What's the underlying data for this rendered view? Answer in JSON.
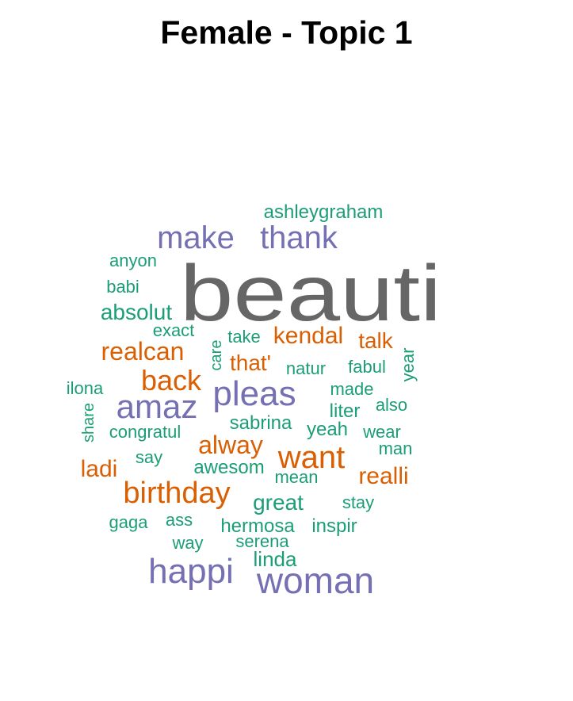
{
  "title": "Female - Topic 1",
  "colors": {
    "gray": "#666666",
    "purple": "#7570b3",
    "orange": "#d95f02",
    "green": "#1b9e77"
  },
  "chart_data": {
    "type": "wordcloud",
    "title": "Female - Topic 1",
    "words": [
      {
        "text": "beauti",
        "size_rank": 1,
        "color_group": "gray"
      },
      {
        "text": "make",
        "size_rank": 2,
        "color_group": "purple"
      },
      {
        "text": "thank",
        "size_rank": 2,
        "color_group": "purple"
      },
      {
        "text": "pleas",
        "size_rank": 2,
        "color_group": "purple"
      },
      {
        "text": "amaz",
        "size_rank": 2,
        "color_group": "purple"
      },
      {
        "text": "happi",
        "size_rank": 2,
        "color_group": "purple"
      },
      {
        "text": "woman",
        "size_rank": 2,
        "color_group": "purple"
      },
      {
        "text": "kendal",
        "size_rank": 3,
        "color_group": "orange"
      },
      {
        "text": "realcan",
        "size_rank": 3,
        "color_group": "orange"
      },
      {
        "text": "back",
        "size_rank": 3,
        "color_group": "orange"
      },
      {
        "text": "want",
        "size_rank": 3,
        "color_group": "orange"
      },
      {
        "text": "birthday",
        "size_rank": 3,
        "color_group": "orange"
      },
      {
        "text": "alway",
        "size_rank": 3,
        "color_group": "orange"
      },
      {
        "text": "realli",
        "size_rank": 3,
        "color_group": "orange"
      },
      {
        "text": "talk",
        "size_rank": 3,
        "color_group": "orange"
      },
      {
        "text": "that'",
        "size_rank": 3,
        "color_group": "orange"
      },
      {
        "text": "ladi",
        "size_rank": 3,
        "color_group": "orange"
      },
      {
        "text": "ashleygraham",
        "size_rank": 4,
        "color_group": "green"
      },
      {
        "text": "anyon",
        "size_rank": 4,
        "color_group": "green"
      },
      {
        "text": "babi",
        "size_rank": 4,
        "color_group": "green"
      },
      {
        "text": "absolut",
        "size_rank": 4,
        "color_group": "green"
      },
      {
        "text": "exact",
        "size_rank": 4,
        "color_group": "green"
      },
      {
        "text": "take",
        "size_rank": 4,
        "color_group": "green"
      },
      {
        "text": "care",
        "size_rank": 4,
        "color_group": "green"
      },
      {
        "text": "natur",
        "size_rank": 4,
        "color_group": "green"
      },
      {
        "text": "fabul",
        "size_rank": 4,
        "color_group": "green"
      },
      {
        "text": "year",
        "size_rank": 4,
        "color_group": "green"
      },
      {
        "text": "ilona",
        "size_rank": 4,
        "color_group": "green"
      },
      {
        "text": "made",
        "size_rank": 4,
        "color_group": "green"
      },
      {
        "text": "liter",
        "size_rank": 4,
        "color_group": "green"
      },
      {
        "text": "also",
        "size_rank": 4,
        "color_group": "green"
      },
      {
        "text": "share",
        "size_rank": 4,
        "color_group": "green"
      },
      {
        "text": "congratul",
        "size_rank": 4,
        "color_group": "green"
      },
      {
        "text": "sabrina",
        "size_rank": 4,
        "color_group": "green"
      },
      {
        "text": "yeah",
        "size_rank": 4,
        "color_group": "green"
      },
      {
        "text": "wear",
        "size_rank": 4,
        "color_group": "green"
      },
      {
        "text": "say",
        "size_rank": 4,
        "color_group": "green"
      },
      {
        "text": "awesom",
        "size_rank": 4,
        "color_group": "green"
      },
      {
        "text": "mean",
        "size_rank": 4,
        "color_group": "green"
      },
      {
        "text": "man",
        "size_rank": 4,
        "color_group": "green"
      },
      {
        "text": "great",
        "size_rank": 4,
        "color_group": "green"
      },
      {
        "text": "stay",
        "size_rank": 4,
        "color_group": "green"
      },
      {
        "text": "gaga",
        "size_rank": 4,
        "color_group": "green"
      },
      {
        "text": "ass",
        "size_rank": 4,
        "color_group": "green"
      },
      {
        "text": "hermosa",
        "size_rank": 4,
        "color_group": "green"
      },
      {
        "text": "inspir",
        "size_rank": 4,
        "color_group": "green"
      },
      {
        "text": "way",
        "size_rank": 4,
        "color_group": "green"
      },
      {
        "text": "serena",
        "size_rank": 4,
        "color_group": "green"
      },
      {
        "text": "linda",
        "size_rank": 4,
        "color_group": "green"
      }
    ]
  }
}
